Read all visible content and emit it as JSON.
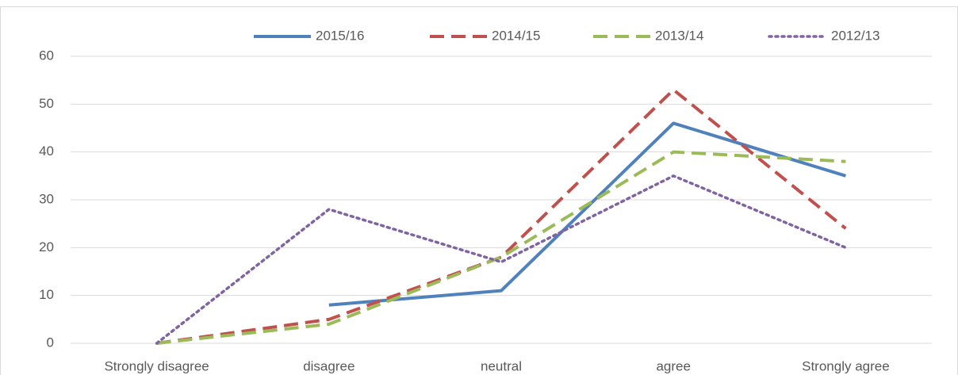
{
  "chart_data": {
    "type": "line",
    "categories": [
      "Strongly disagree",
      "disagree",
      "neutral",
      "agree",
      "Strongly agree"
    ],
    "series": [
      {
        "name": "2015/16",
        "color": "#4f81bd",
        "dash": "solid",
        "values": [
          null,
          8,
          11,
          46,
          35
        ]
      },
      {
        "name": "2014/15",
        "color": "#c0504d",
        "dash": "dashed",
        "values": [
          0,
          5,
          18,
          53,
          24
        ]
      },
      {
        "name": "2013/14",
        "color": "#9bbb59",
        "dash": "dashed",
        "values": [
          0,
          4,
          18,
          40,
          38
        ]
      },
      {
        "name": "2012/13",
        "color": "#8064a2",
        "dash": "dotted",
        "values": [
          0,
          28,
          17,
          35,
          20
        ]
      }
    ],
    "ylim": [
      0,
      60
    ],
    "yticks": [
      0,
      10,
      20,
      30,
      40,
      50,
      60
    ],
    "grid": true,
    "legend": "top"
  }
}
